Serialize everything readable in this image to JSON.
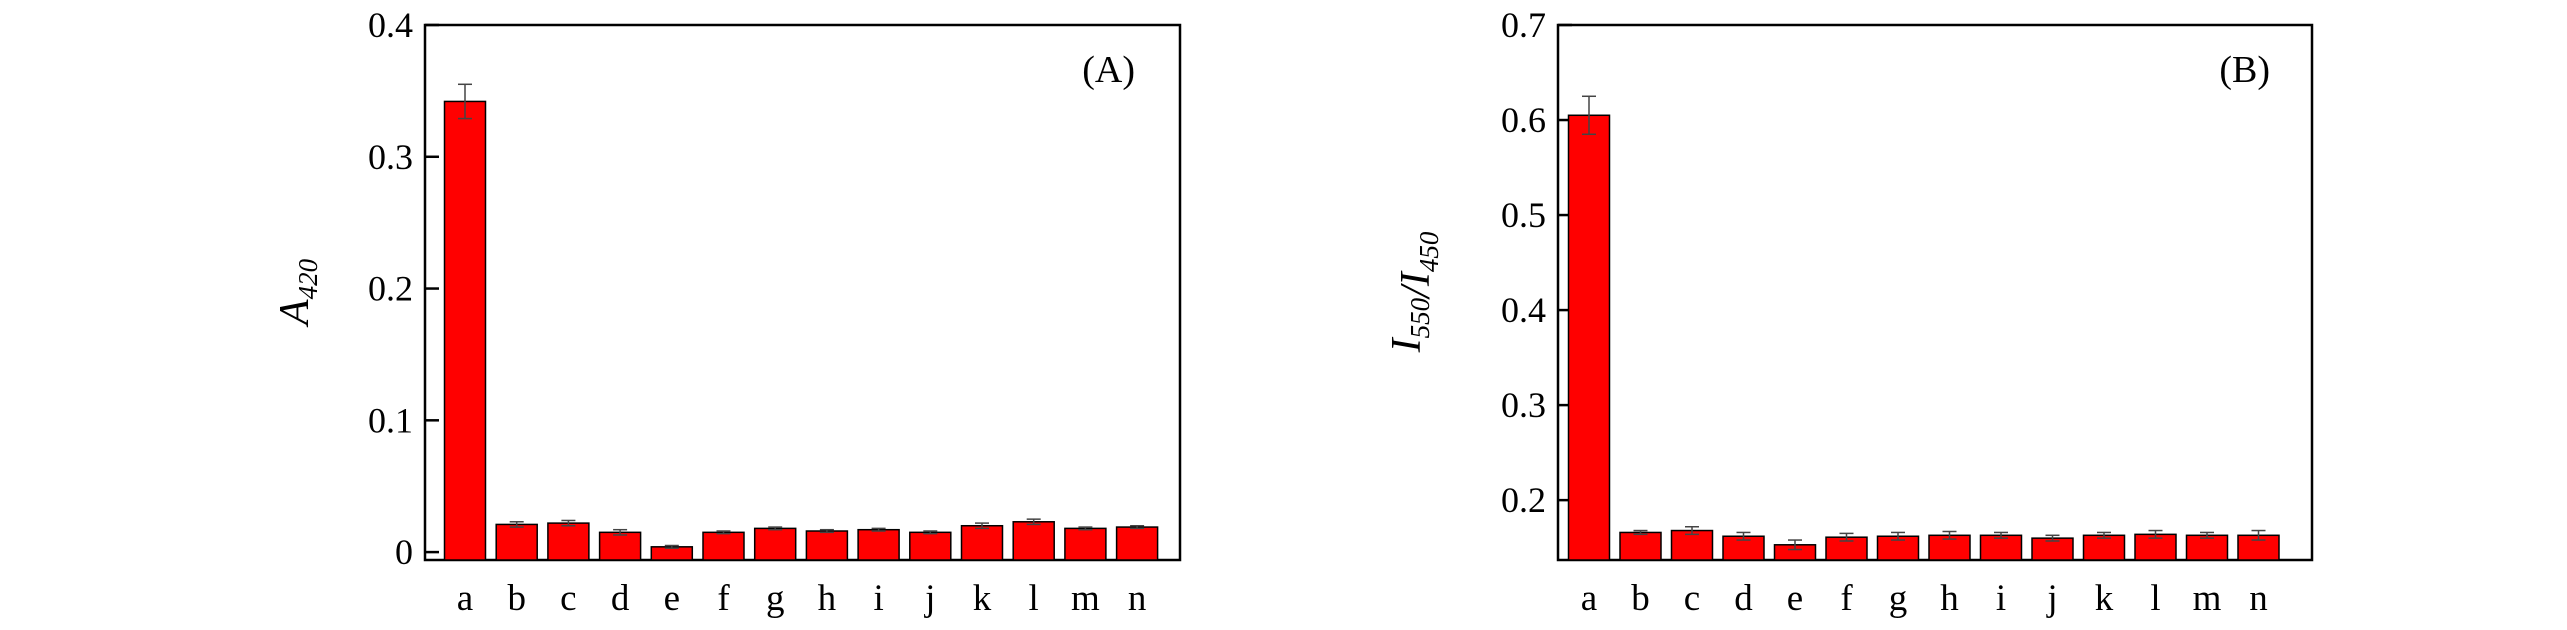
{
  "chart_data": [
    {
      "type": "bar",
      "panel_label": "(A)",
      "ylabel": {
        "base": "A",
        "sub": "420"
      },
      "categories": [
        "a",
        "b",
        "c",
        "d",
        "e",
        "f",
        "g",
        "h",
        "i",
        "j",
        "k",
        "l",
        "m",
        "n"
      ],
      "values": [
        0.342,
        0.021,
        0.022,
        0.015,
        0.004,
        0.015,
        0.018,
        0.016,
        0.017,
        0.015,
        0.02,
        0.023,
        0.018,
        0.019
      ],
      "errors": [
        0.013,
        0.002,
        0.002,
        0.002,
        0.001,
        0.001,
        0.001,
        0.001,
        0.001,
        0.001,
        0.002,
        0.002,
        0.001,
        0.001
      ],
      "ylim": [
        -0.006,
        0.4
      ],
      "yticks": [
        {
          "value": 0,
          "label": "0"
        },
        {
          "value": 0.1,
          "label": "0.1"
        },
        {
          "value": 0.2,
          "label": "0.2"
        },
        {
          "value": 0.3,
          "label": "0.3"
        },
        {
          "value": 0.4,
          "label": "0.4"
        }
      ],
      "bar_color": "#ff0000",
      "grid": false
    },
    {
      "type": "bar",
      "panel_label": "(B)",
      "ylabel": {
        "parts": [
          {
            "base": "I",
            "sub": "550"
          },
          {
            "sep": "/"
          },
          {
            "base": "I",
            "sub": "450"
          }
        ]
      },
      "categories": [
        "a",
        "b",
        "c",
        "d",
        "e",
        "f",
        "g",
        "h",
        "i",
        "j",
        "k",
        "l",
        "m",
        "n"
      ],
      "values": [
        0.605,
        0.166,
        0.168,
        0.162,
        0.153,
        0.161,
        0.162,
        0.163,
        0.163,
        0.16,
        0.163,
        0.164,
        0.163,
        0.163
      ],
      "errors": [
        0.02,
        0.002,
        0.004,
        0.004,
        0.005,
        0.004,
        0.004,
        0.004,
        0.003,
        0.003,
        0.003,
        0.004,
        0.003,
        0.005
      ],
      "ylim": [
        0.137,
        0.7
      ],
      "yticks": [
        {
          "value": 0.2,
          "label": "0.2"
        },
        {
          "value": 0.3,
          "label": "0.3"
        },
        {
          "value": 0.4,
          "label": "0.4"
        },
        {
          "value": 0.5,
          "label": "0.5"
        },
        {
          "value": 0.6,
          "label": "0.6"
        },
        {
          "value": 0.7,
          "label": "0.7"
        }
      ],
      "bar_color": "#ff0000",
      "grid": false
    }
  ]
}
